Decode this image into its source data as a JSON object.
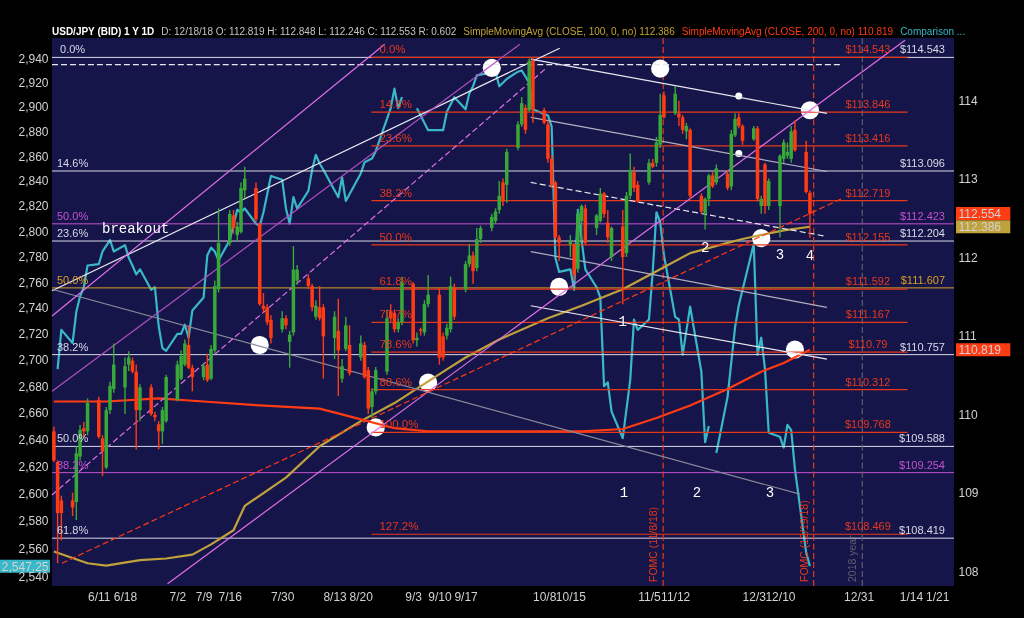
{
  "chart_data": {
    "type": "candlestick",
    "title": "USD/JPY (BID) 1 Y 1D",
    "subtitle": "D: 12/18/18 O: 112.819 H: 112.848 L: 112.246 C: 112.553 R: 0.602",
    "x": [
      "2018-05-30",
      "2018-05-31",
      "2018-06-01",
      "2018-06-04",
      "2018-06-05",
      "2018-06-06",
      "2018-06-07",
      "2018-06-08",
      "2018-06-11",
      "2018-06-12",
      "2018-06-13",
      "2018-06-14",
      "2018-06-15",
      "2018-06-18",
      "2018-06-19",
      "2018-06-20",
      "2018-06-21",
      "2018-06-22",
      "2018-06-25",
      "2018-06-26",
      "2018-06-27",
      "2018-06-28",
      "2018-06-29",
      "2018-07-02",
      "2018-07-03",
      "2018-07-04",
      "2018-07-05",
      "2018-07-06",
      "2018-07-09",
      "2018-07-10",
      "2018-07-11",
      "2018-07-12",
      "2018-07-13",
      "2018-07-16",
      "2018-07-17",
      "2018-07-18",
      "2018-07-19",
      "2018-07-20",
      "2018-07-23",
      "2018-07-24",
      "2018-07-25",
      "2018-07-26",
      "2018-07-27",
      "2018-07-30",
      "2018-07-31",
      "2018-08-01",
      "2018-08-02",
      "2018-08-03",
      "2018-08-06",
      "2018-08-07",
      "2018-08-08",
      "2018-08-09",
      "2018-08-10",
      "2018-08-13",
      "2018-08-14",
      "2018-08-15",
      "2018-08-16",
      "2018-08-17",
      "2018-08-20",
      "2018-08-21",
      "2018-08-22",
      "2018-08-23",
      "2018-08-24",
      "2018-08-27",
      "2018-08-28",
      "2018-08-29",
      "2018-08-30",
      "2018-08-31",
      "2018-09-03",
      "2018-09-04",
      "2018-09-05",
      "2018-09-06",
      "2018-09-07",
      "2018-09-10",
      "2018-09-11",
      "2018-09-12",
      "2018-09-13",
      "2018-09-14",
      "2018-09-17",
      "2018-09-18",
      "2018-09-19",
      "2018-09-20",
      "2018-09-21",
      "2018-09-24",
      "2018-09-25",
      "2018-09-26",
      "2018-09-27",
      "2018-09-28",
      "2018-10-01",
      "2018-10-02",
      "2018-10-03",
      "2018-10-04",
      "2018-10-05",
      "2018-10-08",
      "2018-10-09",
      "2018-10-10",
      "2018-10-11",
      "2018-10-12",
      "2018-10-15",
      "2018-10-16",
      "2018-10-17",
      "2018-10-18",
      "2018-10-19",
      "2018-10-22",
      "2018-10-23",
      "2018-10-24",
      "2018-10-25",
      "2018-10-26",
      "2018-10-29",
      "2018-10-30",
      "2018-10-31",
      "2018-11-01",
      "2018-11-02",
      "2018-11-05",
      "2018-11-06",
      "2018-11-07",
      "2018-11-08",
      "2018-11-09",
      "2018-11-12",
      "2018-11-13",
      "2018-11-14",
      "2018-11-15",
      "2018-11-16",
      "2018-11-19",
      "2018-11-20",
      "2018-11-21",
      "2018-11-22",
      "2018-11-23",
      "2018-11-26",
      "2018-11-27",
      "2018-11-28",
      "2018-11-29",
      "2018-11-30",
      "2018-12-03",
      "2018-12-04",
      "2018-12-05",
      "2018-12-06",
      "2018-12-07",
      "2018-12-10",
      "2018-12-11",
      "2018-12-12",
      "2018-12-13",
      "2018-12-14",
      "2018-12-17",
      "2018-12-18"
    ],
    "ohlc": [
      [
        109.78,
        109.84,
        109.39,
        109.41
      ],
      [
        109.39,
        109.41,
        108.1,
        108.74
      ],
      [
        108.9,
        108.96,
        108.39,
        108.74
      ],
      [
        108.9,
        109.0,
        108.7,
        108.81
      ],
      [
        108.88,
        109.59,
        108.65,
        109.5
      ],
      [
        109.46,
        109.86,
        109.41,
        109.8
      ],
      [
        109.82,
        109.9,
        109.7,
        109.78
      ],
      [
        109.78,
        110.2,
        109.73,
        110.14
      ],
      [
        110.18,
        110.22,
        109.69,
        109.71
      ],
      [
        109.69,
        109.73,
        109.21,
        109.53
      ],
      [
        109.32,
        110.09,
        109.3,
        110.05
      ],
      [
        110.05,
        110.41,
        110.0,
        110.36
      ],
      [
        110.32,
        110.9,
        110.27,
        110.63
      ],
      [
        110.34,
        110.72,
        110.0,
        110.61
      ],
      [
        110.63,
        110.8,
        110.55,
        110.72
      ],
      [
        110.68,
        110.72,
        110.52,
        110.54
      ],
      [
        110.54,
        110.63,
        109.55,
        110.05
      ],
      [
        110.05,
        110.38,
        109.91,
        110.34
      ],
      [
        110.34,
        110.38,
        109.98,
        110.0
      ],
      [
        109.99,
        110.03,
        109.91,
        109.96
      ],
      [
        109.87,
        109.91,
        109.55,
        109.78
      ],
      [
        109.78,
        110.09,
        109.62,
        110.05
      ],
      [
        109.91,
        110.5,
        109.89,
        110.47
      ],
      [
        110.18,
        110.68,
        110.16,
        110.63
      ],
      [
        110.45,
        110.81,
        110.43,
        110.74
      ],
      [
        110.63,
        110.95,
        110.61,
        110.9
      ],
      [
        110.88,
        111.13,
        110.57,
        110.59
      ],
      [
        110.59,
        110.63,
        110.29,
        110.47
      ],
      [
        110.47,
        110.65,
        110.43,
        110.61
      ],
      [
        110.63,
        110.77,
        110.41,
        110.43
      ],
      [
        110.45,
        110.88,
        110.43,
        110.83
      ],
      [
        110.81,
        111.7,
        110.77,
        111.63
      ],
      [
        111.59,
        112.62,
        111.55,
        112.18
      ],
      [
        112.18,
        112.6,
        112.14,
        112.55
      ],
      [
        112.53,
        112.6,
        112.3,
        112.37
      ],
      [
        112.28,
        112.45,
        112.2,
        112.39
      ],
      [
        112.32,
        112.95,
        112.3,
        112.88
      ],
      [
        112.85,
        113.15,
        112.75,
        113.0
      ],
      [
        112.88,
        112.95,
        112.45,
        112.48
      ],
      [
        112.42,
        112.44,
        111.38,
        111.4
      ],
      [
        111.38,
        111.54,
        111.29,
        111.34
      ],
      [
        111.36,
        111.4,
        111.13,
        111.17
      ],
      [
        111.2,
        111.26,
        110.9,
        110.97
      ],
      [
        111.08,
        111.31,
        111.04,
        111.22
      ],
      [
        111.22,
        111.26,
        111.08,
        111.13
      ],
      [
        110.92,
        111.06,
        110.59,
        111.01
      ],
      [
        111.04,
        112.14,
        111.0,
        111.84
      ],
      [
        111.7,
        111.9,
        111.65,
        111.84
      ],
      [
        111.73,
        111.78,
        111.59,
        111.63
      ],
      [
        111.63,
        111.66,
        111.31,
        111.36
      ],
      [
        111.24,
        111.45,
        111.2,
        111.38
      ],
      [
        111.36,
        111.63,
        111.19,
        111.22
      ],
      [
        111.36,
        111.4,
        110.45,
        110.99
      ],
      [
        110.97,
        111.31,
        110.7,
        111.24
      ],
      [
        111.06,
        111.47,
        110.23,
        110.81
      ],
      [
        110.45,
        110.7,
        110.4,
        110.61
      ],
      [
        110.83,
        111.24,
        110.8,
        111.13
      ],
      [
        110.88,
        111.13,
        110.49,
        110.52
      ],
      [
        110.72,
        111.0,
        110.68,
        110.9
      ],
      [
        110.88,
        110.92,
        110.45,
        110.47
      ],
      [
        110.56,
        110.6,
        110.0,
        110.07
      ],
      [
        110.09,
        110.33,
        109.96,
        110.29
      ],
      [
        110.29,
        110.6,
        110.25,
        110.56
      ],
      [
        110.54,
        111.33,
        110.5,
        111.22
      ],
      [
        111.31,
        111.4,
        111.18,
        111.22
      ],
      [
        111.29,
        111.33,
        111.04,
        111.08
      ],
      [
        111.08,
        111.22,
        111.04,
        111.17
      ],
      [
        111.17,
        111.75,
        111.13,
        111.68
      ],
      [
        111.66,
        111.68,
        110.9,
        110.94
      ],
      [
        110.94,
        111.04,
        110.86,
        110.97
      ],
      [
        111.08,
        111.1,
        111.0,
        111.06
      ],
      [
        111.04,
        111.45,
        111.0,
        111.4
      ],
      [
        111.4,
        111.77,
        111.36,
        111.52
      ],
      [
        111.52,
        111.6,
        110.63,
        110.72
      ],
      [
        110.99,
        111.04,
        110.68,
        110.72
      ],
      [
        111.0,
        111.15,
        110.95,
        111.1
      ],
      [
        111.08,
        111.75,
        111.04,
        111.63
      ],
      [
        111.61,
        111.66,
        111.2,
        111.24
      ],
      [
        111.59,
        111.95,
        111.55,
        111.91
      ],
      [
        111.91,
        112.16,
        111.87,
        112.02
      ],
      [
        112.02,
        112.07,
        111.66,
        111.82
      ],
      [
        111.86,
        112.37,
        111.82,
        112.23
      ],
      [
        112.23,
        112.4,
        112.18,
        112.37
      ],
      [
        112.37,
        112.55,
        112.33,
        112.51
      ],
      [
        112.46,
        112.62,
        112.42,
        112.58
      ],
      [
        112.6,
        112.97,
        112.55,
        112.78
      ],
      [
        112.95,
        113.0,
        112.65,
        112.71
      ],
      [
        112.92,
        113.38,
        112.69,
        113.34
      ],
      [
        113.39,
        113.73,
        113.36,
        113.69
      ],
      [
        113.69,
        114.04,
        113.66,
        113.96
      ],
      [
        113.9,
        113.94,
        113.57,
        113.62
      ],
      [
        113.87,
        114.53,
        113.85,
        114.5
      ],
      [
        114.5,
        114.543,
        113.71,
        113.87
      ],
      [
        113.87,
        113.9,
        113.69,
        113.71
      ],
      [
        113.69,
        113.74,
        113.2,
        113.25
      ],
      [
        113.25,
        113.3,
        112.88,
        112.92
      ],
      [
        112.95,
        112.97,
        112.23,
        112.25
      ],
      [
        112.25,
        112.28,
        111.95,
        112.18
      ],
      [
        112.16,
        112.28,
        112.0,
        112.21
      ],
      [
        112.16,
        112.18,
        111.7,
        111.77
      ],
      [
        111.85,
        112.6,
        111.8,
        112.55
      ],
      [
        112.46,
        112.67,
        112.2,
        112.65
      ],
      [
        112.62,
        112.67,
        112.16,
        112.18
      ],
      [
        112.37,
        112.55,
        112.28,
        112.53
      ],
      [
        112.46,
        112.88,
        112.44,
        112.81
      ],
      [
        112.81,
        112.83,
        112.5,
        112.55
      ],
      [
        112.44,
        112.6,
        112.18,
        112.25
      ],
      [
        112.0,
        112.39,
        111.95,
        112.37
      ],
      [
        112.39,
        112.6,
        111.4,
        112.0
      ],
      [
        112.05,
        112.83,
        112.0,
        112.78
      ],
      [
        112.78,
        113.32,
        112.74,
        113.11
      ],
      [
        113.08,
        113.15,
        112.83,
        112.88
      ],
      [
        112.92,
        112.97,
        112.69,
        112.71
      ],
      [
        112.95,
        113.25,
        112.92,
        113.2
      ],
      [
        113.2,
        113.25,
        113.13,
        113.15
      ],
      [
        113.2,
        113.53,
        113.15,
        113.46
      ],
      [
        113.43,
        114.08,
        113.39,
        113.81
      ],
      [
        114.06,
        114.11,
        113.76,
        113.78
      ],
      [
        113.83,
        114.18,
        113.81,
        114.08
      ],
      [
        113.83,
        113.99,
        113.67,
        113.78
      ],
      [
        113.78,
        113.81,
        113.57,
        113.62
      ],
      [
        113.6,
        113.71,
        113.5,
        113.67
      ],
      [
        113.62,
        113.64,
        112.74,
        112.78
      ],
      [
        112.78,
        112.81,
        112.55,
        112.58
      ],
      [
        112.55,
        112.76,
        112.35,
        112.74
      ],
      [
        112.74,
        113.06,
        112.65,
        113.04
      ],
      [
        113.04,
        113.08,
        112.88,
        112.9
      ],
      [
        112.95,
        113.18,
        112.92,
        113.13
      ],
      [
        113.06,
        113.11,
        112.85,
        112.88
      ],
      [
        112.9,
        113.62,
        112.85,
        113.57
      ],
      [
        113.55,
        113.83,
        113.53,
        113.76
      ],
      [
        113.78,
        113.83,
        113.64,
        113.67
      ],
      [
        113.67,
        113.69,
        113.43,
        113.48
      ],
      [
        113.5,
        113.67,
        113.48,
        113.64
      ],
      [
        113.64,
        113.67,
        112.71,
        112.74
      ],
      [
        112.65,
        112.78,
        112.55,
        112.74
      ],
      [
        113.18,
        113.2,
        112.55,
        112.65
      ],
      [
        112.65,
        113.0,
        112.6,
        112.97
      ],
      [
        112.65,
        113.31,
        112.25,
        113.29
      ],
      [
        113.25,
        113.5,
        113.2,
        113.46
      ],
      [
        113.29,
        113.46,
        113.25,
        113.34
      ],
      [
        113.25,
        113.67,
        113.2,
        113.6
      ],
      [
        113.62,
        113.74,
        113.34,
        113.36
      ],
      [
        113.34,
        113.48,
        112.81,
        112.83
      ],
      [
        112.819,
        112.848,
        112.246,
        112.553
      ]
    ],
    "colors": [
      "#ff3b14",
      "#ff3b14",
      "#ff3b14",
      "#ff3b14",
      "#38a838",
      "#38a838",
      "#ff3b14",
      "#38a838",
      "#ff3b14",
      "#ff3b14",
      "#38a838",
      "#38a838",
      "#38a838",
      "#38a838",
      "#38a838",
      "#ff3b14",
      "#ff3b14",
      "#38a838",
      "#ff3b14",
      "#ff3b14",
      "#ff3b14",
      "#38a838",
      "#38a838",
      "#38a838",
      "#38a838",
      "#38a838",
      "#ff3b14",
      "#ff3b14",
      "#38a838",
      "#ff3b14",
      "#38a838",
      "#38a838",
      "#38a838",
      "#38a838",
      "#ff3b14",
      "#38a838",
      "#38a838",
      "#38a838",
      "#ff3b14",
      "#ff3b14",
      "#ff3b14",
      "#ff3b14",
      "#ff3b14",
      "#38a838",
      "#ff3b14",
      "#38a838",
      "#38a838",
      "#38a838",
      "#ff3b14",
      "#ff3b14",
      "#38a838",
      "#ff3b14",
      "#ff3b14",
      "#38a838",
      "#ff3b14",
      "#38a838",
      "#38a838",
      "#ff3b14",
      "#38a838",
      "#ff3b14",
      "#ff3b14",
      "#38a838",
      "#38a838",
      "#38a838",
      "#ff3b14",
      "#ff3b14",
      "#38a838",
      "#38a838",
      "#ff3b14",
      "#38a838",
      "#ff3b14",
      "#38a838",
      "#38a838",
      "#ff3b14",
      "#ff3b14",
      "#38a838",
      "#38a838",
      "#ff3b14",
      "#38a838",
      "#38a838",
      "#ff3b14",
      "#38a838",
      "#38a838",
      "#38a838",
      "#38a838",
      "#38a838",
      "#ff3b14",
      "#38a838",
      "#38a838",
      "#38a838",
      "#ff3b14",
      "#38a838",
      "#ff3b14",
      "#ff3b14",
      "#ff3b14",
      "#ff3b14",
      "#ff3b14",
      "#ff3b14",
      "#38a838",
      "#ff3b14",
      "#38a838",
      "#38a838",
      "#ff3b14",
      "#38a838",
      "#38a838",
      "#ff3b14",
      "#ff3b14",
      "#38a838",
      "#ff3b14",
      "#38a838",
      "#38a838",
      "#ff3b14",
      "#ff3b14",
      "#38a838",
      "#ff3b14",
      "#38a838",
      "#38a838",
      "#ff3b14",
      "#38a838",
      "#ff3b14",
      "#ff3b14",
      "#38a838",
      "#ff3b14",
      "#ff3b14",
      "#38a838",
      "#38a838",
      "#ff3b14",
      "#38a838",
      "#ff3b14",
      "#38a838",
      "#38a838",
      "#ff3b14",
      "#ff3b14",
      "#38a838",
      "#ff3b14",
      "#38a838",
      "#ff3b14",
      "#38a838",
      "#38a838",
      "#38a838",
      "#38a838",
      "#38a838",
      "#ff3b14",
      "#ff3b14",
      "#ff3b14"
    ],
    "xlim": [
      "2018-05-29T12:00",
      "2019-01-25T12:00"
    ],
    "xticks": [
      {
        "value": "2018-06-11",
        "label": "6/11"
      },
      {
        "value": "2018-06-18",
        "label": "6/18"
      },
      {
        "value": "2018-07-02",
        "label": "7/2"
      },
      {
        "value": "2018-07-09",
        "label": "7/9"
      },
      {
        "value": "2018-07-16",
        "label": "7/16"
      },
      {
        "value": "2018-07-30",
        "label": "7/30"
      },
      {
        "value": "2018-08-13",
        "label": "8/13"
      },
      {
        "value": "2018-08-20",
        "label": "8/20"
      },
      {
        "value": "2018-09-03",
        "label": "9/3"
      },
      {
        "value": "2018-09-10",
        "label": "9/10"
      },
      {
        "value": "2018-09-17",
        "label": "9/17"
      },
      {
        "value": "2018-10-08",
        "label": "10/8"
      },
      {
        "value": "2018-10-15",
        "label": "10/15"
      },
      {
        "value": "2018-11-05",
        "label": "11/5"
      },
      {
        "value": "2018-11-12",
        "label": "11/12"
      },
      {
        "value": "2018-12-03",
        "label": "12/3"
      },
      {
        "value": "2018-12-10",
        "label": "12/10"
      },
      {
        "value": "2018-12-31",
        "label": "12/31"
      },
      {
        "value": "2019-01-14",
        "label": "1/14"
      },
      {
        "value": "2019-01-21",
        "label": "1/21"
      }
    ],
    "ylim": [
      107.81,
      114.79
    ],
    "yticks": [
      108,
      109,
      110,
      110.819,
      111,
      112,
      112.386,
      112.554,
      113,
      114
    ],
    "y2lim": [
      2533,
      2957
    ],
    "y2ticks": [
      {
        "value": 2540,
        "label": "2,540"
      },
      {
        "value": 2547.25,
        "label": "2,547.25"
      },
      {
        "value": 2560,
        "label": "2,560"
      },
      {
        "value": 2580,
        "label": "2,580"
      },
      {
        "value": 2600,
        "label": "2,600"
      },
      {
        "value": 2620,
        "label": "2,620"
      },
      {
        "value": 2640,
        "label": "2,640"
      },
      {
        "value": 2660,
        "label": "2,660"
      },
      {
        "value": 2680,
        "label": "2,680"
      },
      {
        "value": 2700,
        "label": "2,700"
      },
      {
        "value": 2720,
        "label": "2,720"
      },
      {
        "value": 2740,
        "label": "2,740"
      },
      {
        "value": 2760,
        "label": "2,760"
      },
      {
        "value": 2780,
        "label": "2,780"
      },
      {
        "value": 2800,
        "label": "2,800"
      },
      {
        "value": 2820,
        "label": "2,820"
      },
      {
        "value": 2840,
        "label": "2,840"
      },
      {
        "value": 2860,
        "label": "2,860"
      },
      {
        "value": 2880,
        "label": "2,880"
      },
      {
        "value": 2900,
        "label": "2,900"
      },
      {
        "value": 2920,
        "label": "2,920"
      },
      {
        "value": 2940,
        "label": "2,940"
      }
    ],
    "log": "y2",
    "legend": "top",
    "series": [
      {
        "name": "SimpleMovingAvg (CLOSE, 100, 0, no) 112.386",
        "type": "line",
        "color": "#c0a23c",
        "x": [
          "2018-05-30",
          "2018-06-08",
          "2018-06-13",
          "2018-06-22",
          "2018-06-29",
          "2018-07-06",
          "2018-07-11",
          "2018-07-17",
          "2018-07-20",
          "2018-07-31",
          "2018-08-09",
          "2018-08-20",
          "2018-08-29",
          "2018-09-12",
          "2018-09-17",
          "2018-09-26",
          "2018-10-09",
          "2018-10-18",
          "2018-10-29",
          "2018-11-07",
          "2018-11-16",
          "2018-11-26",
          "2018-11-30",
          "2018-12-11",
          "2018-12-18"
        ],
        "values": [
          108.25,
          108.1,
          108.07,
          108.14,
          108.16,
          108.21,
          108.34,
          108.52,
          108.83,
          109.19,
          109.59,
          109.91,
          110.14,
          110.57,
          110.72,
          110.95,
          111.22,
          111.38,
          111.59,
          111.82,
          112.05,
          112.18,
          112.23,
          112.34,
          112.386
        ]
      },
      {
        "name": "SimpleMovingAvg (CLOSE, 200, 0, no) 110.819",
        "type": "line",
        "color": "#ff3b14",
        "x": [
          "2018-05-30",
          "2018-06-13",
          "2018-06-27",
          "2018-07-09",
          "2018-07-24",
          "2018-08-09",
          "2018-08-17",
          "2018-08-29",
          "2018-09-07",
          "2018-10-02",
          "2018-10-18",
          "2018-10-29",
          "2018-11-07",
          "2018-11-16",
          "2018-11-26",
          "2018-12-05",
          "2018-12-11",
          "2018-12-18"
        ],
        "values": [
          110.16,
          110.16,
          110.2,
          110.16,
          110.11,
          110.07,
          109.97,
          109.82,
          109.78,
          109.78,
          109.78,
          109.81,
          109.95,
          110.11,
          110.32,
          110.54,
          110.65,
          110.819
        ]
      },
      {
        "name": "Comparison ...",
        "type": "line",
        "axis": "y2",
        "color": "#38b8c8",
        "x": [
          "2018-05-31",
          "2018-06-01",
          "2018-06-04",
          "2018-06-05",
          "2018-06-06",
          "2018-06-07",
          "2018-06-08",
          "2018-06-11",
          "2018-06-12",
          "2018-06-14",
          "2018-06-15",
          "2018-06-18",
          "2018-06-19",
          "2018-06-20",
          "2018-06-21",
          "2018-06-22",
          "2018-06-25",
          "2018-06-26",
          "2018-06-27",
          "2018-06-28",
          "2018-06-29",
          "2018-07-02",
          "2018-07-03",
          "2018-07-04",
          "2018-07-05",
          "2018-07-06",
          "2018-07-09",
          "2018-07-10",
          "2018-07-11",
          "2018-07-12",
          "2018-07-13",
          "2018-07-16",
          "2018-07-18",
          "2018-07-19",
          "2018-07-20",
          "2018-07-23",
          "2018-07-24",
          "2018-07-25",
          "2018-07-27",
          "2018-07-30",
          "2018-07-31",
          "2018-08-01",
          "2018-08-02",
          "2018-08-03",
          "2018-08-06",
          "2018-08-07",
          "2018-08-08",
          "2018-08-09",
          "2018-08-10",
          "2018-08-14",
          "2018-08-15",
          "2018-08-16",
          "2018-08-20",
          "2018-08-21",
          "2018-08-23",
          "2018-08-24",
          "2018-08-28",
          "2018-08-29",
          "2018-08-30",
          "2018-08-31",
          "2018-09-03",
          "2018-09-04",
          "2018-09-07",
          "2018-09-11",
          "2018-09-12",
          "2018-09-14",
          "2018-09-17",
          "2018-09-18",
          "2018-09-19",
          "2018-09-20",
          "2018-09-25",
          "2018-09-26",
          "2018-09-28",
          "2018-10-01",
          "2018-10-02",
          "2018-10-04",
          "2018-10-05",
          "2018-10-09",
          "2018-10-10",
          "2018-10-11",
          "2018-10-12",
          "2018-10-15",
          "2018-10-16",
          "2018-10-17",
          "2018-10-18",
          "2018-10-19",
          "2018-10-22",
          "2018-10-23",
          "2018-10-24",
          "2018-10-25",
          "2018-10-26",
          "2018-10-29",
          "2018-10-31",
          "2018-11-01",
          "2018-11-02",
          "2018-11-05",
          "2018-11-06",
          "2018-11-07",
          "2018-11-08",
          "2018-11-09",
          "2018-11-12",
          "2018-11-13",
          "2018-11-14",
          "2018-11-16",
          "2018-11-19",
          "2018-11-20",
          "2018-11-21",
          "2018-11-22",
          "2018-11-23",
          "2018-11-26",
          "2018-11-28",
          "2018-11-29",
          "2018-12-03",
          "2018-12-04",
          "2018-12-05",
          "2018-12-06",
          "2018-12-07",
          "2018-12-10",
          "2018-12-11",
          "2018-12-12",
          "2018-12-13",
          "2018-12-14",
          "2018-12-17",
          "2018-12-18"
        ],
        "values": [
          2693,
          2723,
          2713,
          2737,
          2749,
          2756,
          2773,
          2774,
          2784,
          2793,
          2784,
          2789,
          2779,
          2773,
          2766,
          2770,
          2754,
          2756,
          2726,
          2709,
          2707,
          2720,
          2720,
          2727,
          2717,
          2738,
          2748,
          2781,
          2787,
          2784,
          2777,
          2793,
          2817,
          2815,
          2818,
          2806,
          2804,
          2815,
          2844,
          2841,
          2818,
          2806,
          2827,
          2818,
          2832,
          2849,
          2861,
          2854,
          2849,
          2827,
          2843,
          2824,
          2846,
          2855,
          2858,
          2864,
          2899,
          2915,
          2899,
          2908,
          null,
          2899,
          2881,
          2881,
          2896,
          2908,
          2898,
          2911,
          2917,
          2926,
          2929,
          2917,
          2923,
          2929,
          2930,
          2920,
          2898,
          2893,
          2884,
          2779,
          2768,
          2770,
          2754,
          2817,
          2793,
          2770,
          2756,
          2748,
          2680,
          2683,
          2661,
          2641,
          2685,
          2731,
          2723,
          2731,
          2768,
          2815,
          2807,
          2781,
          2733,
          2731,
          2704,
          2741,
          2691,
          2638,
          2650,
          null,
          2630,
          2672,
          2725,
          2742,
          2790,
          2704,
          2717,
          2693,
          2645,
          2642,
          2634,
          2651,
          2647,
          2618,
          2557,
          2547.25
        ]
      },
      {
        "name": "0.0%",
        "type": "line",
        "color": "#e8381a",
        "x": [
          "2018-08-22T20:00",
          "2019-01-13T02:00"
        ],
        "values": [
          114.543,
          114.543
        ]
      },
      {
        "name": "14.6%",
        "type": "line",
        "color": "#e8381a",
        "x": [
          "2018-08-22T20:00",
          "2019-01-13T02:00"
        ],
        "values": [
          113.846,
          113.846
        ]
      },
      {
        "name": "23.6%",
        "type": "line",
        "color": "#e8381a",
        "x": [
          "2018-08-22T20:00",
          "2019-01-13T02:00"
        ],
        "values": [
          113.416,
          113.416
        ]
      },
      {
        "name": "38.2%",
        "type": "line",
        "color": "#e8381a",
        "x": [
          "2018-08-22T20:00",
          "2019-01-13T02:00"
        ],
        "values": [
          112.719,
          112.719
        ]
      },
      {
        "name": "50.0%",
        "type": "line",
        "color": "#e8381a",
        "x": [
          "2018-08-22T20:00",
          "2019-01-13T02:00"
        ],
        "values": [
          112.155,
          112.155
        ]
      },
      {
        "name": "61.8%",
        "type": "line",
        "color": "#e8381a",
        "x": [
          "2018-08-22T20:00",
          "2019-01-13T02:00"
        ],
        "values": [
          111.592,
          111.592
        ]
      },
      {
        "name": "70.7%",
        "type": "line",
        "color": "#e8381a",
        "x": [
          "2018-08-22T20:00",
          "2019-01-13T02:00"
        ],
        "values": [
          111.167,
          111.167
        ]
      },
      {
        "name": "78.6%",
        "type": "line",
        "color": "#e8381a",
        "x": [
          "2018-08-22T20:00",
          "2019-01-13T02:00"
        ],
        "values": [
          110.79,
          110.79
        ]
      },
      {
        "name": "88.6%",
        "type": "line",
        "color": "#e8381a",
        "x": [
          "2018-08-22T20:00",
          "2019-01-13T02:00"
        ],
        "values": [
          110.312,
          110.312
        ]
      },
      {
        "name": "100.0%",
        "type": "line",
        "color": "#e8381a",
        "x": [
          "2018-08-22T20:00",
          "2019-01-13T02:00"
        ],
        "values": [
          109.768,
          109.768
        ]
      },
      {
        "name": "127.2%",
        "type": "line",
        "color": "#e8381a",
        "x": [
          "2018-08-22T20:00",
          "2019-01-13T02:00"
        ],
        "values": [
          108.469,
          108.469
        ]
      },
      {
        "type": "line",
        "color": "#e8e8f0",
        "x": [
          "2018-05-29T12:00",
          "2018-10-12T04:00"
        ],
        "values": [
          111.57,
          114.66
        ]
      },
      {
        "type": "line",
        "color": "#8a8a9a",
        "x": [
          "2018-05-29T12:00",
          "2018-12-15T08:00"
        ],
        "values": [
          111.59,
          108.98
        ]
      },
      {
        "type": "line",
        "color": "#e8e8f0",
        "line_style": "dashed",
        "x": [
          "2018-05-29T12:00",
          "2018-12-26T00:00"
        ],
        "values": [
          114.45,
          114.45
        ]
      },
      {
        "type": "line",
        "color": "#e8e8f0",
        "x": [
          "2018-10-04T10:00",
          "2018-12-22T13:00"
        ],
        "values": [
          114.52,
          113.83
        ]
      },
      {
        "type": "line",
        "color": "#b0b0c0",
        "x": [
          "2018-10-04T10:00",
          "2018-12-22T13:00"
        ],
        "values": [
          113.78,
          113.09
        ]
      },
      {
        "type": "line",
        "color": "#e8e8f0",
        "line_style": "dashed",
        "x": [
          "2018-10-04T10:00",
          "2018-12-21T15:00"
        ],
        "values": [
          112.95,
          112.27
        ]
      },
      {
        "type": "line",
        "color": "#b0b0c0",
        "x": [
          "2018-10-04T10:00",
          "2018-12-22T13:00"
        ],
        "values": [
          112.07,
          111.36
        ]
      },
      {
        "type": "line",
        "color": "#e8e8f0",
        "x": [
          "2018-10-04T10:00",
          "2018-12-22T13:00"
        ],
        "values": [
          111.38,
          110.7
        ]
      },
      {
        "type": "line",
        "color": "#e070e8",
        "x": [
          "2018-05-29T12:00",
          "2018-08-26T09:00"
        ],
        "values": [
          111.25,
          114.71
        ]
      },
      {
        "type": "line",
        "color": "#b050c0",
        "x": [
          "2018-05-29T12:00",
          "2018-10-01T12:00"
        ],
        "values": [
          110.29,
          114.71
        ]
      },
      {
        "type": "line",
        "color": "#e070e8",
        "x": [
          "2018-06-29T09:00",
          "2019-01-12T10:00"
        ],
        "values": [
          107.84,
          114.76
        ]
      },
      {
        "type": "line",
        "color": "#ff3b14",
        "line_style": "dashed",
        "x": [
          "2018-06-01T04:00",
          "2018-12-26T07:00"
        ],
        "values": [
          108.1,
          112.74
        ]
      },
      {
        "type": "line",
        "color": "#e070e8",
        "line_style": "dashed",
        "x": [
          "2018-05-29T12:00",
          "2018-10-08T04:00"
        ],
        "values": [
          108.97,
          114.39
        ]
      },
      {
        "type": "bubble",
        "color": "#ffffff",
        "x": [
          "2018-09-24",
          "2018-11-08",
          "2018-12-18",
          "2018-11-29",
          "2018-11-29",
          "2018-12-05",
          "2018-10-12",
          "2018-12-14",
          "2018-07-24",
          "2018-09-07",
          "2018-08-24"
        ],
        "values": [
          114.41,
          114.4,
          113.87,
          114.05,
          113.32,
          112.24,
          111.62,
          110.82,
          110.88,
          110.4,
          109.83
        ],
        "sizes": [
          1,
          1,
          1,
          0.15,
          0.15,
          1,
          1,
          1,
          1,
          1,
          1
        ]
      }
    ],
    "ref_lines": [
      {
        "axis": "y",
        "value": 114.543,
        "label": "$114.543",
        "color": "#d8d8e8"
      },
      {
        "axis": "y",
        "value": 113.096,
        "label": "$113.096",
        "color": "#d8d8e8"
      },
      {
        "axis": "y",
        "value": 112.204,
        "label": "$112.204",
        "color": "#d8d8e8"
      },
      {
        "axis": "y",
        "value": 110.757,
        "label": "$110.757",
        "color": "#d8d8e8"
      },
      {
        "axis": "y",
        "value": 109.588,
        "label": "$109.588",
        "color": "#d8d8e8"
      },
      {
        "axis": "y",
        "value": 108.419,
        "label": "$108.419",
        "color": "#d8d8e8"
      },
      {
        "axis": "y",
        "value": 112.423,
        "label": "$112.423",
        "color": "#c452d0"
      },
      {
        "axis": "y",
        "value": 109.254,
        "label": "$109.254",
        "color": "#c452d0"
      },
      {
        "axis": "y",
        "value": 111.607,
        "label": "$111.607",
        "color": "#d8a020"
      },
      {
        "axis": "x",
        "value": "2018-11-08T19:00",
        "label": "FOMC (11/8/18)",
        "color": "#e8381a",
        "line_style": "dashed"
      },
      {
        "axis": "x",
        "value": "2018-12-19",
        "label": "FOMC (12/19/18)",
        "color": "#e8381a",
        "line_style": "dashed"
      },
      {
        "axis": "x",
        "value": "2019-01-01",
        "label": "2018 year",
        "color": "#5e5e70",
        "line_style": "dashed"
      }
    ],
    "annotations": [
      {
        "text": "$114.543",
        "x": "2019-01-02T12:00",
        "y": 114.543
      },
      {
        "text": "$113.846",
        "x": "2019-01-02T12:00",
        "y": 113.846
      },
      {
        "text": "$113.416",
        "x": "2019-01-02T12:00",
        "y": 113.416
      },
      {
        "text": "$112.719",
        "x": "2019-01-02T12:00",
        "y": 112.719
      },
      {
        "text": "$112.155",
        "x": "2019-01-02T12:00",
        "y": 112.155
      },
      {
        "text": "$111.592",
        "x": "2019-01-02T12:00",
        "y": 111.592
      },
      {
        "text": "$111.167",
        "x": "2019-01-02T12:00",
        "y": 111.167
      },
      {
        "text": "$110.79",
        "x": "2019-01-02T12:00",
        "y": 110.79
      },
      {
        "text": "$110.312",
        "x": "2019-01-02T12:00",
        "y": 110.312
      },
      {
        "text": "$109.768",
        "x": "2019-01-02T12:00",
        "y": 109.768
      },
      {
        "text": "$108.469",
        "x": "2019-01-02T12:00",
        "y": 108.469
      },
      {
        "text": "0.0%",
        "x": "2018-06-04",
        "y": 114.543
      },
      {
        "text": "14.6%",
        "x": "2018-06-04",
        "y": 113.096
      },
      {
        "text": "23.6%",
        "x": "2018-06-04",
        "y": 112.204
      },
      {
        "text": "38.2%",
        "x": "2018-06-04",
        "y": 110.757
      },
      {
        "text": "50.0%",
        "x": "2018-06-04",
        "y": 109.588
      },
      {
        "text": "61.8%",
        "x": "2018-06-04",
        "y": 108.419
      },
      {
        "text": "50.0%",
        "x": "2018-06-04",
        "y": 112.423
      },
      {
        "text": "38.2%",
        "x": "2018-06-04",
        "y": 109.254
      },
      {
        "text": "50.0%",
        "x": "2018-06-04",
        "y": 111.607
      },
      {
        "text": "1",
        "x": "2018-10-29",
        "y": 111.4
      },
      {
        "text": "2",
        "x": "2018-11-20",
        "y": 112.35
      },
      {
        "text": "3",
        "x": "2018-12-10",
        "y": 112.25
      },
      {
        "text": "4",
        "x": "2018-12-18",
        "y": 112.246
      },
      "breakout",
      "1",
      "2",
      "3"
    ]
  }
}
